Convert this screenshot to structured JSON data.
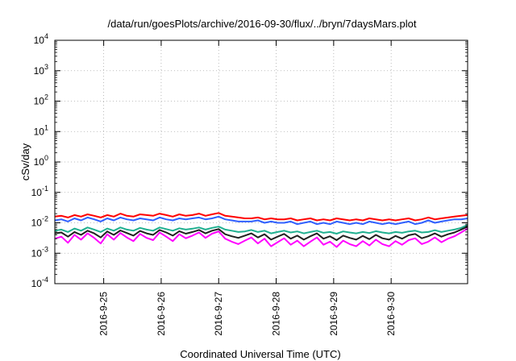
{
  "chart_data": {
    "type": "line",
    "title": "/data/run/goesPlots/archive/2016-09-30/flux/../bryn/7daysMars.plot",
    "xlabel": "Coordinated Universal Time (UTC)",
    "ylabel": "cSv/day",
    "yscale": "log",
    "ylim": [
      0.0001,
      10000
    ],
    "xlim": [
      -0.85,
      6.33
    ],
    "grid": true,
    "legend": "none",
    "x_tick_labels": [
      "2016-9-25",
      "2016-9-26",
      "2016-9-27",
      "2016-9-28",
      "2016-9-29",
      "2016-9-30"
    ],
    "x_tick_values": [
      0,
      1,
      2,
      3,
      4,
      5
    ],
    "y_ticks": [
      {
        "value": 0.0001,
        "mantissa": "10",
        "exp": "-4"
      },
      {
        "value": 0.001,
        "mantissa": "10",
        "exp": "-3"
      },
      {
        "value": 0.01,
        "mantissa": "10",
        "exp": "-2"
      },
      {
        "value": 0.1,
        "mantissa": "10",
        "exp": "-1"
      },
      {
        "value": 1,
        "mantissa": "10",
        "exp": "0"
      },
      {
        "value": 10,
        "mantissa": "10",
        "exp": "1"
      },
      {
        "value": 100,
        "mantissa": "10",
        "exp": "2"
      },
      {
        "value": 1000,
        "mantissa": "10",
        "exp": "3"
      },
      {
        "value": 10000,
        "mantissa": "10",
        "exp": "4"
      }
    ],
    "series": [
      {
        "color": "#ff0000",
        "base": 0.016,
        "values": [
          0.016,
          0.017,
          0.015,
          0.018,
          0.016,
          0.019,
          0.017,
          0.015,
          0.018,
          0.016,
          0.02,
          0.017,
          0.016,
          0.019,
          0.018,
          0.017,
          0.02,
          0.018,
          0.016,
          0.019,
          0.017,
          0.018,
          0.02,
          0.017,
          0.019,
          0.021,
          0.017,
          0.016,
          0.015,
          0.014,
          0.014,
          0.015,
          0.013,
          0.014,
          0.013,
          0.013,
          0.014,
          0.012,
          0.013,
          0.014,
          0.012,
          0.013,
          0.012,
          0.014,
          0.013,
          0.012,
          0.013,
          0.012,
          0.014,
          0.013,
          0.012,
          0.013,
          0.012,
          0.013,
          0.014,
          0.012,
          0.013,
          0.015,
          0.013,
          0.014,
          0.015,
          0.016,
          0.017,
          0.018
        ]
      },
      {
        "color": "#3060ff",
        "base": 0.012,
        "values": [
          0.012,
          0.013,
          0.011,
          0.014,
          0.012,
          0.015,
          0.013,
          0.011,
          0.014,
          0.012,
          0.015,
          0.013,
          0.012,
          0.014,
          0.013,
          0.012,
          0.015,
          0.013,
          0.012,
          0.014,
          0.013,
          0.014,
          0.015,
          0.013,
          0.014,
          0.016,
          0.013,
          0.012,
          0.011,
          0.011,
          0.011,
          0.012,
          0.01,
          0.011,
          0.01,
          0.01,
          0.011,
          0.009,
          0.01,
          0.011,
          0.009,
          0.01,
          0.009,
          0.011,
          0.01,
          0.009,
          0.01,
          0.009,
          0.011,
          0.01,
          0.009,
          0.01,
          0.009,
          0.01,
          0.011,
          0.009,
          0.01,
          0.012,
          0.01,
          0.011,
          0.012,
          0.013,
          0.013,
          0.014
        ]
      },
      {
        "color": "#20b090",
        "base": 0.006,
        "values": [
          0.0055,
          0.006,
          0.005,
          0.0065,
          0.0055,
          0.007,
          0.006,
          0.005,
          0.0065,
          0.0055,
          0.007,
          0.006,
          0.0055,
          0.0068,
          0.006,
          0.0055,
          0.007,
          0.0062,
          0.0055,
          0.0066,
          0.006,
          0.0064,
          0.007,
          0.006,
          0.0068,
          0.0075,
          0.006,
          0.0055,
          0.005,
          0.0052,
          0.0058,
          0.005,
          0.0055,
          0.0045,
          0.005,
          0.0055,
          0.0048,
          0.0052,
          0.0045,
          0.005,
          0.0055,
          0.0047,
          0.005,
          0.0044,
          0.0052,
          0.0048,
          0.0045,
          0.005,
          0.0046,
          0.0053,
          0.0048,
          0.0045,
          0.005,
          0.0047,
          0.0052,
          0.0055,
          0.0048,
          0.005,
          0.0057,
          0.005,
          0.0055,
          0.006,
          0.0068,
          0.0085
        ]
      },
      {
        "color": "#202020",
        "base": 0.004,
        "values": [
          0.0045,
          0.0048,
          0.0035,
          0.005,
          0.004,
          0.0055,
          0.0045,
          0.0033,
          0.0052,
          0.004,
          0.0056,
          0.0046,
          0.0038,
          0.0054,
          0.0045,
          0.004,
          0.0058,
          0.0048,
          0.0038,
          0.0053,
          0.0044,
          0.005,
          0.0058,
          0.0045,
          0.0055,
          0.0062,
          0.0042,
          0.0036,
          0.0032,
          0.0038,
          0.0045,
          0.0033,
          0.0042,
          0.0028,
          0.0035,
          0.0043,
          0.003,
          0.0038,
          0.0028,
          0.0036,
          0.0045,
          0.003,
          0.0036,
          0.0027,
          0.0038,
          0.0032,
          0.0028,
          0.0037,
          0.0029,
          0.004,
          0.0031,
          0.0028,
          0.0037,
          0.003,
          0.0039,
          0.0043,
          0.0031,
          0.0036,
          0.0045,
          0.0035,
          0.0042,
          0.0048,
          0.006,
          0.0075
        ]
      },
      {
        "color": "#ff00ff",
        "base": 0.003,
        "values": [
          0.003,
          0.0035,
          0.0022,
          0.004,
          0.0028,
          0.0045,
          0.0032,
          0.0021,
          0.0042,
          0.0028,
          0.0046,
          0.0033,
          0.0025,
          0.0043,
          0.0032,
          0.0027,
          0.0048,
          0.0035,
          0.0025,
          0.0042,
          0.0031,
          0.0038,
          0.0048,
          0.0032,
          0.0044,
          0.0052,
          0.003,
          0.0024,
          0.002,
          0.0026,
          0.0033,
          0.0021,
          0.003,
          0.0017,
          0.0023,
          0.0031,
          0.0019,
          0.0026,
          0.0017,
          0.0024,
          0.0033,
          0.0019,
          0.0024,
          0.0016,
          0.0026,
          0.002,
          0.0017,
          0.0025,
          0.0018,
          0.0028,
          0.002,
          0.0017,
          0.0025,
          0.0019,
          0.0027,
          0.0031,
          0.002,
          0.0024,
          0.0033,
          0.0023,
          0.003,
          0.0036,
          0.0048,
          0.0065
        ]
      }
    ]
  }
}
